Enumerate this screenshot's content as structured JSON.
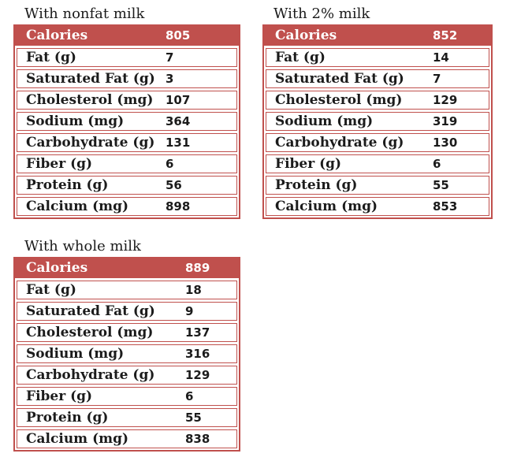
{
  "colors": {
    "accent_red": "#c0504d",
    "header_text": "#ffffff",
    "body_text": "#1b1b1b"
  },
  "tables": [
    {
      "title": "With nonfat milk",
      "header": {
        "label": "Calories",
        "value": "805"
      },
      "rows": [
        {
          "label": "Fat (g)",
          "value": "7"
        },
        {
          "label": "Saturated Fat (g)",
          "value": "3"
        },
        {
          "label": "Cholesterol (mg)",
          "value": "107"
        },
        {
          "label": "Sodium (mg)",
          "value": "364"
        },
        {
          "label": "Carbohydrate (g)",
          "value": "131"
        },
        {
          "label": "Fiber (g)",
          "value": "6"
        },
        {
          "label": "Protein (g)",
          "value": "56"
        },
        {
          "label": "Calcium (mg)",
          "value": "898"
        }
      ]
    },
    {
      "title": "With 2% milk",
      "header": {
        "label": "Calories",
        "value": "852"
      },
      "rows": [
        {
          "label": "Fat (g)",
          "value": "14"
        },
        {
          "label": "Saturated Fat (g)",
          "value": "7"
        },
        {
          "label": "Cholesterol (mg)",
          "value": "129"
        },
        {
          "label": "Sodium (mg)",
          "value": "319"
        },
        {
          "label": "Carbohydrate (g)",
          "value": "130"
        },
        {
          "label": "Fiber (g)",
          "value": "6"
        },
        {
          "label": "Protein (g)",
          "value": "55"
        },
        {
          "label": "Calcium (mg)",
          "value": "853"
        }
      ]
    },
    {
      "title": "With whole milk",
      "header": {
        "label": "Calories",
        "value": "889"
      },
      "rows": [
        {
          "label": "Fat (g)",
          "value": "18"
        },
        {
          "label": "Saturated Fat (g)",
          "value": "9"
        },
        {
          "label": "Cholesterol (mg)",
          "value": "137"
        },
        {
          "label": "Sodium (mg)",
          "value": "316"
        },
        {
          "label": "Carbohydrate (g)",
          "value": "129"
        },
        {
          "label": "Fiber (g)",
          "value": "6"
        },
        {
          "label": "Protein (g)",
          "value": "55"
        },
        {
          "label": "Calcium (mg)",
          "value": "838"
        }
      ]
    }
  ]
}
